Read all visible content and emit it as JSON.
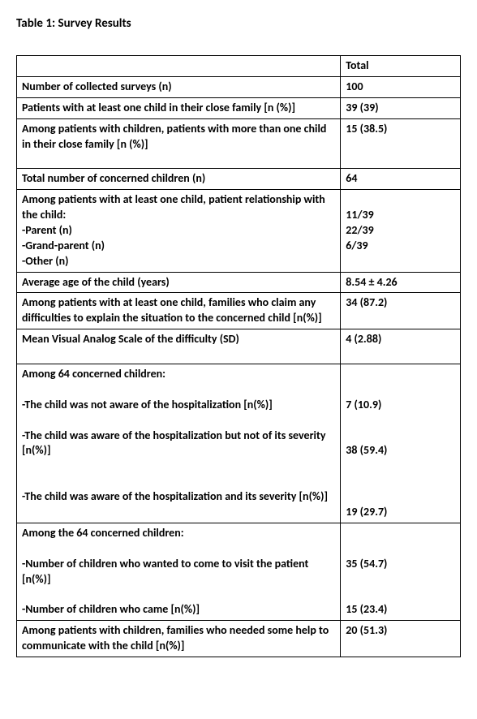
{
  "title": "Table 1: Survey Results",
  "header": {
    "label": "",
    "value": "Total"
  },
  "rows": [
    {
      "label": "Number of collected surveys (n)",
      "value": "100"
    },
    {
      "label": "Patients with at least one child in their close family [n (%)]",
      "value": "39 (39)"
    },
    {
      "label": "Among patients with children, patients with more than one child in their close family [n (%)]",
      "value": "15 (38.5)",
      "pad_bottom": true
    },
    {
      "label": "Total number of concerned children (n)",
      "value": "64"
    },
    {
      "label": "Among patients with at least one child, patient relationship with the child:",
      "sub_labels": [
        "-Parent (n)",
        "-Grand-parent (n)",
        "-Other (n)"
      ],
      "value": "",
      "sub_values": [
        "11/39",
        "22/39",
        "6/39"
      ],
      "value_lead_blank": true
    },
    {
      "label": "Average age of the child (years)",
      "value": "8.54 ± 4.26"
    },
    {
      "label": "Among patients with at least one child, families who claim any difficulties to explain the situation to the concerned child [n(%)]",
      "value": "34 (87.2)"
    },
    {
      "label": "Mean Visual Analog Scale of the difficulty (SD)",
      "value": "4 (2.88)",
      "pad_bottom": true
    },
    {
      "label": "Among 64 concerned children:",
      "sub_labels": [
        "",
        "-The child was not aware of the hospitalization [n(%)]",
        "",
        "-The child was aware of the hospitalization but not of its severity [n(%)]",
        "",
        "",
        "-The child was aware of the hospitalization and its severity [n(%)]",
        ""
      ],
      "value": "",
      "sub_values": [
        "",
        "",
        "7 (10.9)",
        "",
        "",
        "38 (59.4)",
        "",
        "",
        "",
        "19 (29.7)"
      ]
    },
    {
      "label": "Among the 64 concerned children:",
      "sub_labels": [
        "",
        "-Number of children who wanted to come to visit the patient [n(%)]",
        "",
        "-Number of children who came [n(%)]"
      ],
      "value": "",
      "sub_values": [
        "",
        "",
        "35 (54.7)",
        "",
        "",
        "15 (23.4)"
      ]
    },
    {
      "label": "Among patients with children, families who needed some help to communicate with the child [n(%)]",
      "value": "20 (51.3)"
    }
  ]
}
